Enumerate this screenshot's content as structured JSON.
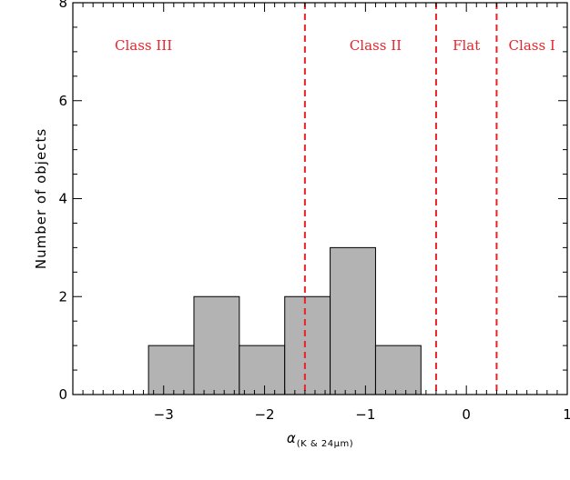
{
  "chart_data": {
    "type": "bar",
    "style": "histogram",
    "xlabel": {
      "symbol": "α",
      "subscript": "(K & 24μm)"
    },
    "ylabel": "Number of objects",
    "xlim": [
      -3.9,
      1.0
    ],
    "ylim": [
      0,
      8
    ],
    "xticks": [
      -3,
      -2,
      -1,
      0,
      1
    ],
    "xtick_labels": [
      "−3",
      "−2",
      "−1",
      "0",
      "1"
    ],
    "yticks": [
      0,
      2,
      4,
      6,
      8
    ],
    "ytick_labels": [
      "0",
      "2",
      "4",
      "6",
      "8"
    ],
    "bins": [
      {
        "x0": -3.15,
        "x1": -2.7,
        "count": 1
      },
      {
        "x0": -2.7,
        "x1": -2.25,
        "count": 2
      },
      {
        "x0": -2.25,
        "x1": -1.8,
        "count": 1
      },
      {
        "x0": -1.8,
        "x1": -1.35,
        "count": 2
      },
      {
        "x0": -1.35,
        "x1": -0.9,
        "count": 3
      },
      {
        "x0": -0.9,
        "x1": -0.45,
        "count": 1
      }
    ],
    "boundaries": [
      -1.6,
      -0.3,
      0.3
    ],
    "regions": [
      {
        "label": "Class III",
        "x": -3.2
      },
      {
        "label": "Class II",
        "x": -0.9
      },
      {
        "label": "Flat",
        "x": 0.0
      },
      {
        "label": "Class I",
        "x": 0.65
      }
    ],
    "colors": {
      "bars": "#b3b3b3",
      "boundaries": "#e8232a",
      "labels": "#e8232a",
      "axes": "#000000"
    },
    "grid": false,
    "legend": "none"
  }
}
